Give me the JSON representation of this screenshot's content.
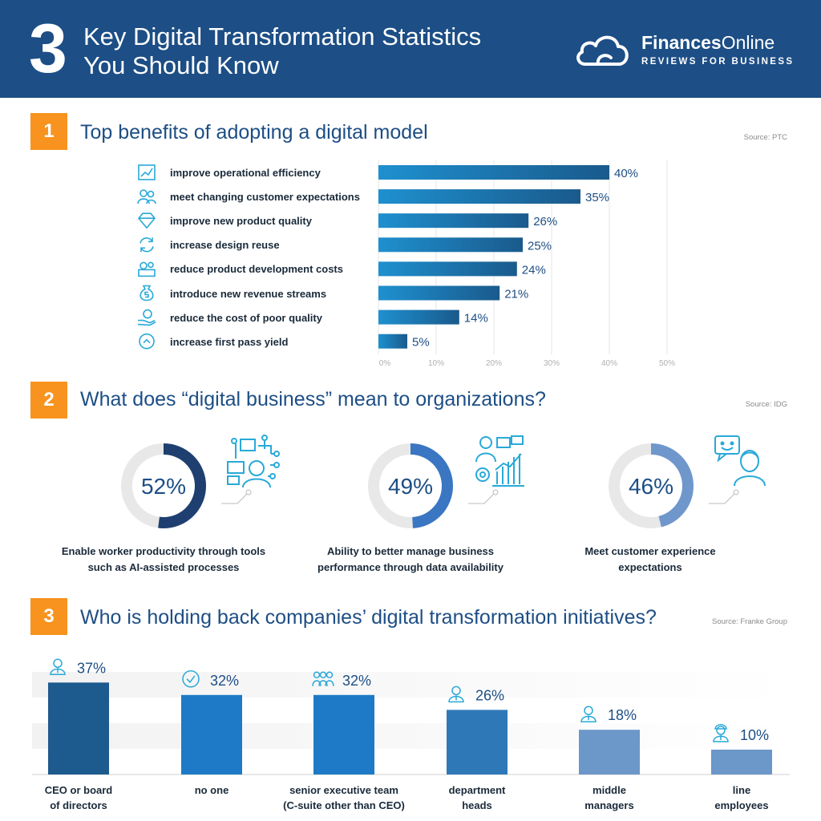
{
  "header": {
    "number": "3",
    "title_line1": "Key Digital Transformation Statistics",
    "title_line2": "You Should Know",
    "brand_bold": "Finances",
    "brand_rest": "Online",
    "brand_tagline": "REVIEWS FOR BUSINESS"
  },
  "colors": {
    "header_bg": "#1d4e85",
    "badge": "#f7931e",
    "bar_dark": "#1a5a8c",
    "bar_light": "#1e90cf"
  },
  "sections": [
    {
      "number": "1",
      "title": "Top benefits of adopting a digital model",
      "source": "Source: PTC"
    },
    {
      "number": "2",
      "title": "What does “digital business” mean to organizations?",
      "source": "Source: IDG"
    },
    {
      "number": "3",
      "title": "Who is holding back companies’ digital transformation initiatives?",
      "source": "Source: Franke Group"
    }
  ],
  "benefits_icons": [
    "chart-up-icon",
    "customers-icon",
    "diamond-icon",
    "recycle-icon",
    "cost-gears-icon",
    "money-bag-icon",
    "hand-coin-icon",
    "chevron-up-circle-icon"
  ],
  "donut_captions": [
    [
      "Enable worker productivity through tools",
      "such as AI-assisted processes"
    ],
    [
      "Ability to better manage business",
      "performance through data availability"
    ],
    [
      "Meet customer experience",
      "expectations"
    ]
  ],
  "holdback_labels": [
    [
      "CEO or board",
      "of directors"
    ],
    [
      "no one"
    ],
    [
      "senior executive team",
      "(C-suite other than CEO)"
    ],
    [
      "department",
      "heads"
    ],
    [
      "middle",
      "managers"
    ],
    [
      "line",
      "employees"
    ]
  ],
  "chart_data": [
    {
      "type": "bar",
      "orientation": "horizontal",
      "title": "Top benefits of adopting a digital model",
      "categories": [
        "improve operational efficiency",
        "meet changing customer expectations",
        "improve new product quality",
        "increase design reuse",
        "reduce product development costs",
        "introduce new revenue streams",
        "reduce the cost of poor quality",
        "increase first pass yield"
      ],
      "values": [
        40,
        35,
        26,
        25,
        24,
        21,
        14,
        5
      ],
      "value_labels": [
        "40%",
        "35%",
        "26%",
        "25%",
        "24%",
        "21%",
        "14%",
        "5%"
      ],
      "xlim": [
        0,
        50
      ],
      "xticks": [
        0,
        10,
        20,
        30,
        40,
        50
      ],
      "xtick_labels": [
        "0%",
        "10%",
        "20%",
        "30%",
        "40%",
        "50%"
      ],
      "grid": true
    },
    {
      "type": "pie",
      "subtype": "donut",
      "title": "What does “digital business” mean to organizations?",
      "values": [
        52,
        49,
        46
      ],
      "value_labels": [
        "52%",
        "49%",
        "46%"
      ],
      "categories": [
        "Enable worker productivity through tools such as AI-assisted processes",
        "Ability to better manage business performance through data availability",
        "Meet customer experience expectations"
      ]
    },
    {
      "type": "bar",
      "orientation": "vertical",
      "title": "Who is holding back companies’ digital transformation initiatives?",
      "categories": [
        "CEO or board of directors",
        "no one",
        "senior executive team (C-suite other than CEO)",
        "department heads",
        "middle managers",
        "line employees"
      ],
      "values": [
        37,
        32,
        32,
        26,
        18,
        10
      ],
      "value_labels": [
        "37%",
        "32%",
        "32%",
        "26%",
        "18%",
        "10%"
      ],
      "icons": [
        "executive-icon",
        "checkmark-icon",
        "team-icon",
        "manager-icon",
        "worker-icon",
        "hardhat-icon"
      ]
    }
  ]
}
